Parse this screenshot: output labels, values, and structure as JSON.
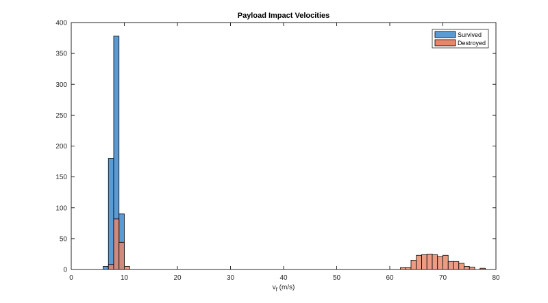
{
  "chart_data": {
    "type": "bar",
    "title": "Payload Impact Velocities",
    "xlabel": {
      "base": "v",
      "subscript": "f",
      "suffix": " (m/s)"
    },
    "ylabel": "",
    "xlim": [
      0,
      80
    ],
    "ylim": [
      0,
      400
    ],
    "xticks": [
      "0",
      "10",
      "20",
      "30",
      "40",
      "50",
      "60",
      "70",
      "80"
    ],
    "yticks": [
      "0",
      "50",
      "100",
      "150",
      "200",
      "250",
      "300",
      "350",
      "400"
    ],
    "bin_width": 1,
    "grid": false,
    "legend_position": "top-right",
    "series": [
      {
        "name": "Survived",
        "color": "#5b9bd5",
        "bins": [
          {
            "x0": 6,
            "count": 5
          },
          {
            "x0": 7,
            "count": 180
          },
          {
            "x0": 8,
            "count": 378
          },
          {
            "x0": 9,
            "count": 90
          }
        ]
      },
      {
        "name": "Destroyed",
        "color": "#e8866a",
        "bins": [
          {
            "x0": 7,
            "count": 8
          },
          {
            "x0": 8,
            "count": 82
          },
          {
            "x0": 9,
            "count": 44
          },
          {
            "x0": 10,
            "count": 5
          },
          {
            "x0": 62,
            "count": 3
          },
          {
            "x0": 63,
            "count": 3
          },
          {
            "x0": 64,
            "count": 15
          },
          {
            "x0": 65,
            "count": 23
          },
          {
            "x0": 66,
            "count": 24
          },
          {
            "x0": 67,
            "count": 25
          },
          {
            "x0": 68,
            "count": 24
          },
          {
            "x0": 69,
            "count": 21
          },
          {
            "x0": 70,
            "count": 23
          },
          {
            "x0": 71,
            "count": 13
          },
          {
            "x0": 72,
            "count": 13
          },
          {
            "x0": 73,
            "count": 10
          },
          {
            "x0": 74,
            "count": 5
          },
          {
            "x0": 75,
            "count": 4
          },
          {
            "x0": 77,
            "count": 2
          }
        ]
      }
    ]
  }
}
